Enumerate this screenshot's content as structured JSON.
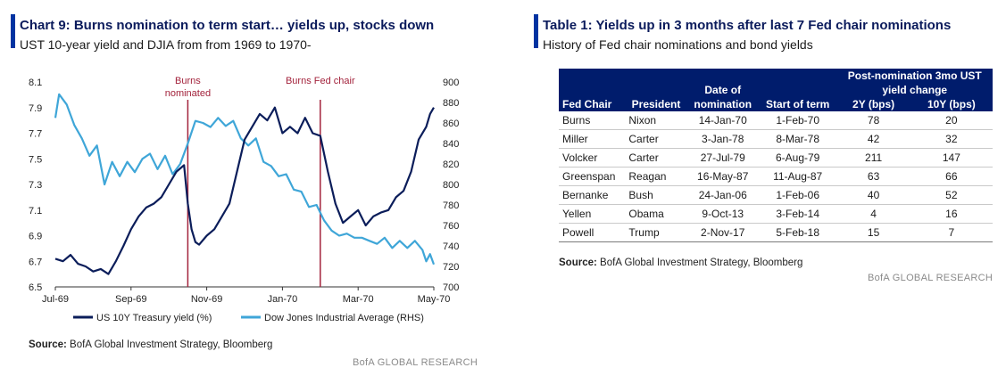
{
  "chart_panel": {
    "title": "Chart 9: Burns nomination to term start… yields up, stocks down",
    "subtitle": "UST 10-year yield and DJIA from from 1969 to 1970-",
    "source_label": "Source:",
    "source_text": " BofA Global Investment Strategy, Bloomberg",
    "brand": "BofA GLOBAL RESEARCH"
  },
  "chart_data": {
    "type": "line",
    "title": "Chart 9: Burns nomination to term start… yields up, stocks down",
    "subtitle": "UST 10-year yield and DJIA from from 1969 to 1970-",
    "x_tick_labels": [
      "Jul-69",
      "Sep-69",
      "Nov-69",
      "Jan-70",
      "Mar-70",
      "May-70"
    ],
    "x_tick_positions": [
      0,
      2,
      4,
      6,
      8,
      10
    ],
    "x_range": [
      0,
      10
    ],
    "y_left": {
      "min": 6.5,
      "max": 8.1,
      "ticks": [
        "6.5",
        "6.7",
        "6.9",
        "7.1",
        "7.3",
        "7.5",
        "7.7",
        "7.9",
        "8.1"
      ]
    },
    "y_right": {
      "min": 700,
      "max": 900,
      "ticks": [
        "700",
        "720",
        "740",
        "760",
        "780",
        "800",
        "820",
        "840",
        "860",
        "880",
        "900"
      ]
    },
    "grid": false,
    "legend_position": "bottom",
    "annotations": [
      {
        "label_lines": [
          "Burns",
          "nominated"
        ],
        "x": 3.5
      },
      {
        "label_lines": [
          "Burns Fed chair"
        ],
        "x": 7.0
      }
    ],
    "series": [
      {
        "name": "US 10Y Treasury yield (%)",
        "axis": "left",
        "color": "#0b1d5a",
        "x": [
          0,
          0.2,
          0.4,
          0.6,
          0.8,
          1.0,
          1.2,
          1.4,
          1.6,
          1.8,
          2.0,
          2.2,
          2.4,
          2.6,
          2.8,
          3.0,
          3.2,
          3.4,
          3.5,
          3.6,
          3.7,
          3.8,
          4.0,
          4.2,
          4.4,
          4.6,
          4.8,
          5.0,
          5.2,
          5.4,
          5.6,
          5.8,
          6.0,
          6.2,
          6.4,
          6.6,
          6.8,
          7.0,
          7.2,
          7.4,
          7.6,
          7.8,
          8.0,
          8.2,
          8.4,
          8.6,
          8.8,
          9.0,
          9.2,
          9.4,
          9.6,
          9.8,
          9.9,
          10.0
        ],
        "values": [
          6.72,
          6.7,
          6.75,
          6.68,
          6.66,
          6.62,
          6.64,
          6.6,
          6.7,
          6.82,
          6.95,
          7.05,
          7.12,
          7.15,
          7.2,
          7.3,
          7.4,
          7.45,
          7.15,
          6.95,
          6.85,
          6.83,
          6.9,
          6.95,
          7.05,
          7.15,
          7.4,
          7.65,
          7.75,
          7.85,
          7.8,
          7.9,
          7.7,
          7.75,
          7.7,
          7.82,
          7.7,
          7.68,
          7.4,
          7.15,
          7.0,
          7.05,
          7.1,
          6.98,
          7.05,
          7.08,
          7.1,
          7.2,
          7.25,
          7.4,
          7.65,
          7.75,
          7.85,
          7.9
        ]
      },
      {
        "name": "Dow Jones Industrial Average (RHS)",
        "axis": "right",
        "color": "#3fa6d8",
        "x": [
          0,
          0.1,
          0.3,
          0.5,
          0.7,
          0.9,
          1.1,
          1.3,
          1.5,
          1.7,
          1.9,
          2.1,
          2.3,
          2.5,
          2.7,
          2.9,
          3.1,
          3.3,
          3.5,
          3.7,
          3.9,
          4.1,
          4.3,
          4.5,
          4.7,
          4.9,
          5.1,
          5.3,
          5.5,
          5.7,
          5.9,
          6.1,
          6.3,
          6.5,
          6.7,
          6.9,
          7.1,
          7.3,
          7.5,
          7.7,
          7.9,
          8.1,
          8.3,
          8.5,
          8.7,
          8.9,
          9.1,
          9.3,
          9.5,
          9.7,
          9.8,
          9.9,
          10.0
        ],
        "values": [
          865,
          888,
          878,
          858,
          845,
          828,
          838,
          800,
          822,
          808,
          822,
          812,
          825,
          830,
          815,
          828,
          810,
          820,
          840,
          862,
          860,
          856,
          865,
          857,
          862,
          845,
          838,
          845,
          822,
          818,
          808,
          810,
          795,
          793,
          778,
          780,
          765,
          755,
          750,
          752,
          748,
          748,
          745,
          742,
          748,
          738,
          745,
          738,
          745,
          736,
          725,
          732,
          722
        ]
      }
    ]
  },
  "table_panel": {
    "title": "Table 1: Yields up in 3 months after last 7 Fed chair nominations",
    "subtitle": "History of Fed chair nominations and bond yields",
    "group_header_line1": "Post-nomination 3mo UST",
    "group_header_line2": "yield change",
    "date_header_line1": "Date of",
    "date_header_line2": "nomination",
    "columns": [
      "Fed Chair",
      "President",
      "Date of nomination",
      "Start of term",
      "2Y (bps)",
      "10Y (bps)"
    ],
    "rows": [
      [
        "Burns",
        "Nixon",
        "14-Jan-70",
        "1-Feb-70",
        "78",
        "20"
      ],
      [
        "Miller",
        "Carter",
        "3-Jan-78",
        "8-Mar-78",
        "42",
        "32"
      ],
      [
        "Volcker",
        "Carter",
        "27-Jul-79",
        "6-Aug-79",
        "211",
        "147"
      ],
      [
        "Greenspan",
        "Reagan",
        "16-May-87",
        "11-Aug-87",
        "63",
        "66"
      ],
      [
        "Bernanke",
        "Bush",
        "24-Jan-06",
        "1-Feb-06",
        "40",
        "52"
      ],
      [
        "Yellen",
        "Obama",
        "9-Oct-13",
        "3-Feb-14",
        "4",
        "16"
      ],
      [
        "Powell",
        "Trump",
        "2-Nov-17",
        "5-Feb-18",
        "15",
        "7"
      ]
    ],
    "source_label": "Source:",
    "source_text": " BofA Global Investment Strategy, Bloomberg",
    "brand": "BofA GLOBAL RESEARCH"
  }
}
